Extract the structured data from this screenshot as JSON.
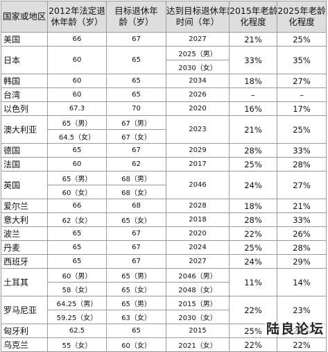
{
  "headers": {
    "country": "国家或地区",
    "retire2012": [
      "2012年法定退",
      "休年龄（岁）"
    ],
    "target": [
      "目标退休年",
      "龄（岁）"
    ],
    "reach": [
      "达到目标退休年龄",
      "时间（年）"
    ],
    "aging2015": [
      "2015年老龄",
      "化程度"
    ],
    "aging2025": [
      "2025年老龄",
      "化程度"
    ]
  },
  "rows": [
    {
      "country": "美国",
      "r2012": [
        "66"
      ],
      "target": [
        "67"
      ],
      "year": [
        "2027"
      ],
      "a2015": "21%",
      "a2025": "25%"
    },
    {
      "country": "日本",
      "r2012": [
        "60"
      ],
      "target": [
        "65"
      ],
      "year": [
        "2025（男）",
        "2030（女）"
      ],
      "a2015": "33%",
      "a2025": "35%"
    },
    {
      "country": "韩国",
      "r2012": [
        "60"
      ],
      "target": [
        "65"
      ],
      "year": [
        "2034"
      ],
      "a2015": "18%",
      "a2025": "27%"
    },
    {
      "country": "台湾",
      "r2012": [
        "60"
      ],
      "target": [
        "65"
      ],
      "year": [
        "2026"
      ],
      "a2015": "–",
      "a2025": "–"
    },
    {
      "country": "以色列",
      "r2012": [
        "67.3"
      ],
      "target": [
        "70"
      ],
      "year": [
        "2020"
      ],
      "a2015": "16%",
      "a2025": "17%"
    },
    {
      "country": "澳大利亚",
      "r2012": [
        "65（男）",
        "64.5（女）"
      ],
      "target": [
        "67（男）",
        "67（女）"
      ],
      "year": [
        "2023"
      ],
      "a2015": "21%",
      "a2025": "25%"
    },
    {
      "country": "德国",
      "r2012": [
        "65"
      ],
      "target": [
        "67"
      ],
      "year": [
        "2029"
      ],
      "a2015": "28%",
      "a2025": "33%"
    },
    {
      "country": "法国",
      "r2012": [
        "60"
      ],
      "target": [
        "62"
      ],
      "year": [
        "2017"
      ],
      "a2015": "25%",
      "a2025": "28%"
    },
    {
      "country": "英国",
      "r2012": [
        "65（男）",
        "60（女）"
      ],
      "target": [
        "68（男）",
        "68（女）"
      ],
      "year": [
        "2046"
      ],
      "a2015": "24%",
      "a2025": "27%"
    },
    {
      "country": "爱尔兰",
      "r2012": [
        "66"
      ],
      "target": [
        "68"
      ],
      "year": [
        "2028"
      ],
      "a2015": "18%",
      "a2025": "21%"
    },
    {
      "country": "意大利",
      "r2012": [
        "62（女）"
      ],
      "target": [
        "65（女）"
      ],
      "year": [
        "2018"
      ],
      "a2015": "28%",
      "a2025": "33%"
    },
    {
      "country": "波兰",
      "r2012": [
        "65"
      ],
      "target": [
        "67"
      ],
      "year": [
        "2020"
      ],
      "a2015": "22%",
      "a2025": "26%"
    },
    {
      "country": "丹麦",
      "r2012": [
        "65"
      ],
      "target": [
        "67"
      ],
      "year": [
        "2024"
      ],
      "a2015": "25%",
      "a2025": "28%"
    },
    {
      "country": "西班牙",
      "r2012": [
        "65"
      ],
      "target": [
        "67"
      ],
      "year": [
        "2027"
      ],
      "a2015": "24%",
      "a2025": "29%"
    },
    {
      "country": "土耳其",
      "r2012": [
        "60（男）",
        "58（女）"
      ],
      "target": [
        "65（男）",
        "65（女）"
      ],
      "year": [
        "2046（男）",
        "2048（女）"
      ],
      "a2015": "11%",
      "a2025": "14%"
    },
    {
      "country": "罗马尼亚",
      "r2012": [
        "64.25（男）",
        "59.25（女）"
      ],
      "target": [
        "65（男）",
        "63（女）"
      ],
      "year": [
        "2015（男）",
        "2030（女）"
      ],
      "a2015": "22%",
      "a2025": "23%"
    },
    {
      "country": "匈牙利",
      "r2012": [
        "62.5"
      ],
      "target": [
        "65"
      ],
      "year": [
        "2015"
      ],
      "a2015": "25%",
      "a2025": "26%"
    },
    {
      "country": "乌克兰",
      "r2012": [
        "55（女）"
      ],
      "target": [
        "60（女）"
      ],
      "year": [
        "2021（女）"
      ],
      "a2015": "22%",
      "a2025": "22%"
    }
  ],
  "watermark": "陆良论坛"
}
